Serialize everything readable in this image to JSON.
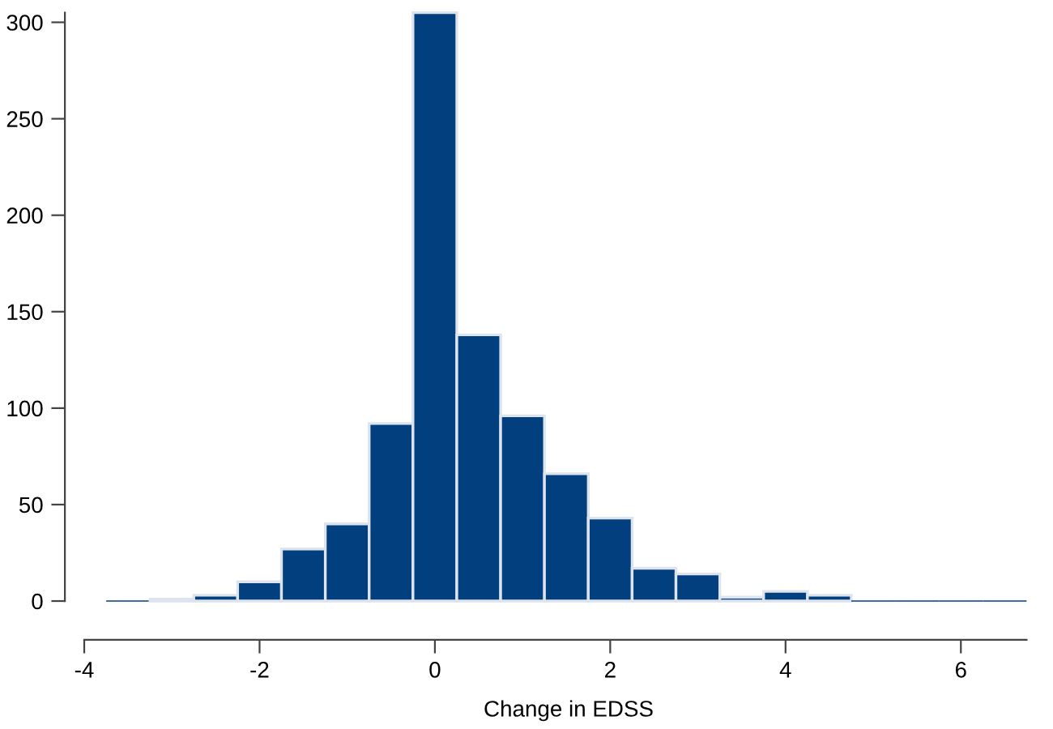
{
  "chart_data": {
    "type": "histogram",
    "xlabel": "Change in EDSS",
    "bins": [
      -3.75,
      -3.25,
      -2.75,
      -2.25,
      -1.75,
      -1.25,
      -0.75,
      -0.25,
      0.25,
      0.75,
      1.25,
      1.75,
      2.25,
      2.75,
      3.25,
      3.75,
      4.25,
      4.75,
      5.25,
      5.75,
      6.25,
      6.75
    ],
    "values": [
      0,
      1,
      3,
      10,
      27,
      40,
      92,
      305,
      138,
      96,
      66,
      43,
      17,
      14,
      2,
      5,
      3,
      0,
      0,
      0,
      0
    ],
    "color": "#023f7f",
    "xlim": [
      -4,
      6.75
    ],
    "ylim": [
      0,
      305
    ],
    "xticks": [
      {
        "value": -4,
        "label": "-4"
      },
      {
        "value": -2,
        "label": "-2"
      },
      0,
      2,
      4,
      6
    ],
    "yticks": [
      0,
      50,
      100,
      150,
      200,
      250,
      300
    ],
    "grid": false
  }
}
